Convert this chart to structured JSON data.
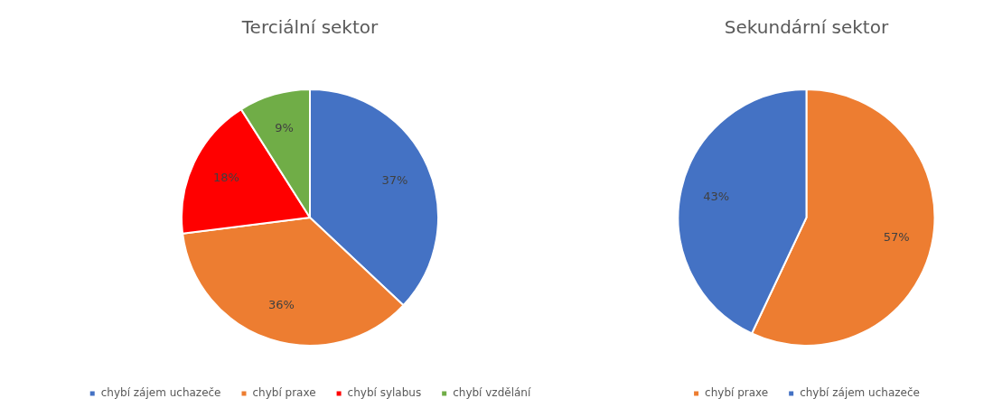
{
  "chart_data": [
    {
      "type": "pie",
      "title": "Terciální sektor",
      "categories": [
        "chybí zájem uchazeče",
        "chybí praxe",
        "chybí sylabus",
        "chybí vzdělání"
      ],
      "values": [
        37,
        36,
        18,
        9
      ],
      "colors": [
        "#4472c4",
        "#ed7d31",
        "#ff0000",
        "#70ad47"
      ],
      "value_labels": [
        "37%",
        "36%",
        "18%",
        "9%"
      ],
      "legend": "bottom"
    },
    {
      "type": "pie",
      "title": "Sekundární sektor",
      "categories": [
        "chybí praxe",
        "chybí zájem uchazeče"
      ],
      "values": [
        57,
        43
      ],
      "colors": [
        "#ed7d31",
        "#4472c4"
      ],
      "value_labels": [
        "57%",
        "43%"
      ],
      "legend": "bottom"
    }
  ]
}
